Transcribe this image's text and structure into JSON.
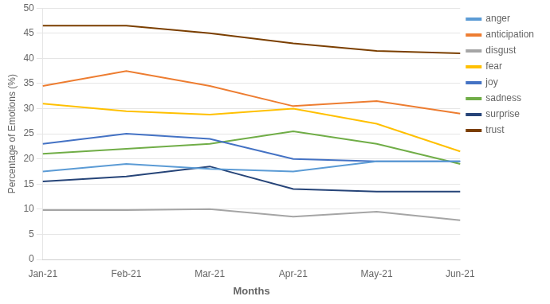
{
  "chart_data": {
    "type": "line",
    "xlabel": "Months",
    "ylabel": "Percentage of Emotions (%)",
    "categories": [
      "Jan-21",
      "Feb-21",
      "Mar-21",
      "Apr-21",
      "May-21",
      "Jun-21"
    ],
    "series": [
      {
        "name": "anger",
        "color": "#5b9bd5",
        "values": [
          17.5,
          19.0,
          18.0,
          17.5,
          19.5,
          19.5
        ]
      },
      {
        "name": "anticipation",
        "color": "#ed7d31",
        "values": [
          34.5,
          37.5,
          34.5,
          30.5,
          31.5,
          29.0
        ]
      },
      {
        "name": "disgust",
        "color": "#a5a5a5",
        "values": [
          9.8,
          9.8,
          10.0,
          8.5,
          9.5,
          7.8
        ]
      },
      {
        "name": "fear",
        "color": "#ffc000",
        "values": [
          31.0,
          29.5,
          28.8,
          30.0,
          27.0,
          21.5
        ]
      },
      {
        "name": "joy",
        "color": "#4472c4",
        "values": [
          23.0,
          25.0,
          24.0,
          20.0,
          19.5,
          19.5
        ]
      },
      {
        "name": "sadness",
        "color": "#70ad47",
        "values": [
          21.0,
          22.0,
          23.0,
          25.5,
          23.0,
          19.0
        ]
      },
      {
        "name": "surprise",
        "color": "#264478",
        "values": [
          15.5,
          16.5,
          18.5,
          14.0,
          13.5,
          13.5
        ]
      },
      {
        "name": "trust",
        "color": "#7b3f00",
        "values": [
          46.5,
          46.5,
          45.0,
          43.0,
          41.5,
          41.0
        ]
      }
    ],
    "ylim": [
      0,
      50
    ],
    "yticks": [
      0,
      5,
      10,
      15,
      20,
      25,
      30,
      35,
      40,
      45,
      50
    ],
    "grid": "y",
    "legend": "right",
    "marker": "none"
  }
}
